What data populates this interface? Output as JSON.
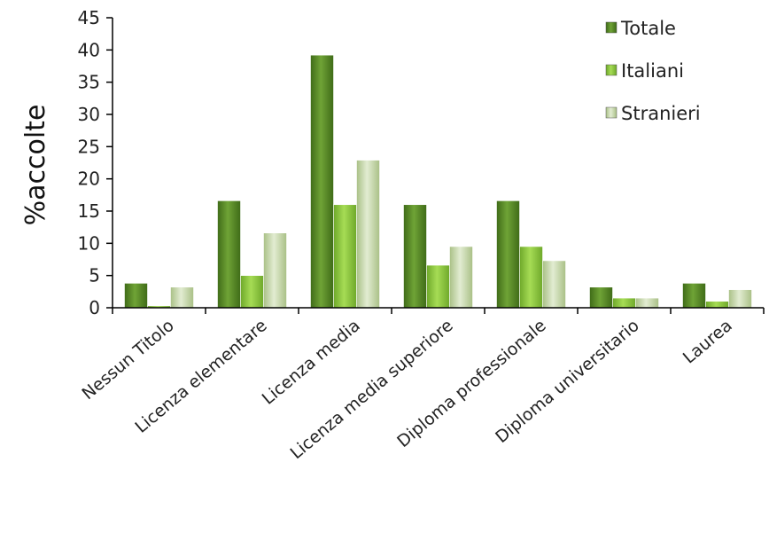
{
  "chart_data": {
    "type": "bar",
    "title": "",
    "xlabel": "",
    "ylabel": "%accolte",
    "ylim": [
      0,
      45
    ],
    "yticks": [
      0,
      5,
      10,
      15,
      20,
      25,
      30,
      35,
      40,
      45
    ],
    "grid": false,
    "legend_position": "top-right",
    "categories": [
      "Nessun Titolo",
      "Licenza elementare",
      "Licenza media",
      "Licenza media superiore",
      "Diploma professionale",
      "Diploma universitario",
      "Laurea"
    ],
    "series": [
      {
        "name": "Totale",
        "color": "#5a8a2a",
        "values": [
          3.8,
          16.6,
          39.2,
          16.0,
          16.6,
          3.2,
          3.8
        ]
      },
      {
        "name": "Italiani",
        "color": "#8cc63f",
        "values": [
          0.3,
          5.0,
          16.0,
          6.6,
          9.5,
          1.5,
          1.0
        ]
      },
      {
        "name": "Stranieri",
        "color": "#c3d6a3",
        "values": [
          3.2,
          11.6,
          22.9,
          9.5,
          7.3,
          1.5,
          2.8
        ]
      }
    ]
  }
}
